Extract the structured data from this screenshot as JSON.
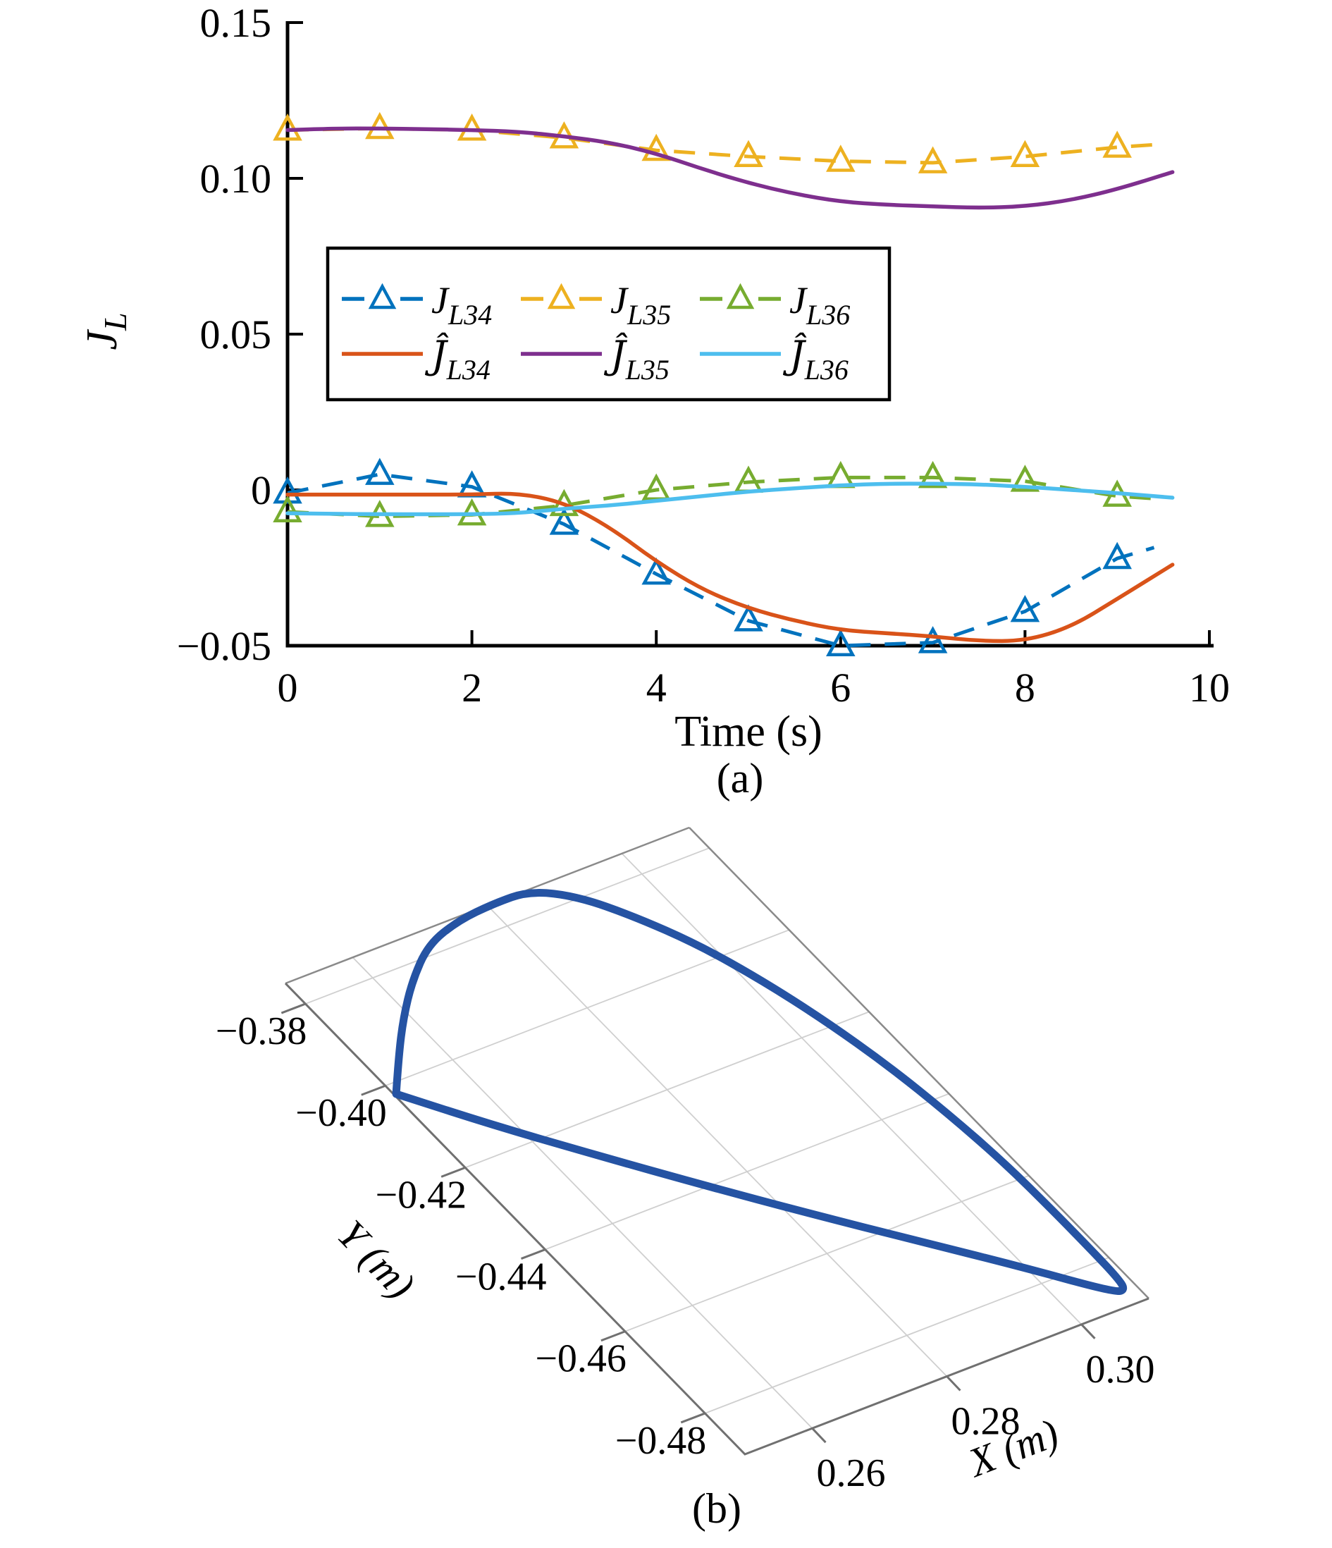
{
  "figure_background": "#ffffff",
  "chart_data": [
    {
      "type": "line",
      "caption": "(a)",
      "xlabel": "Time (s)",
      "ylabel": "J_L",
      "ylabel_parts": {
        "main": "J",
        "sub": "L"
      },
      "xlim": [
        0,
        10
      ],
      "ylim": [
        -0.05,
        0.15
      ],
      "x_ticks": [
        {
          "v": 0,
          "label": "0"
        },
        {
          "v": 2,
          "label": "2"
        },
        {
          "v": 4,
          "label": "4"
        },
        {
          "v": 6,
          "label": "6"
        },
        {
          "v": 8,
          "label": "8"
        },
        {
          "v": 10,
          "label": "10"
        }
      ],
      "y_ticks": [
        {
          "v": 0.15,
          "label": "0.15"
        },
        {
          "v": 0.1,
          "label": "0.10"
        },
        {
          "v": 0.05,
          "label": "0.05"
        },
        {
          "v": 0,
          "label": "0"
        },
        {
          "v": -0.05,
          "label": "−0.05"
        }
      ],
      "grid": false,
      "legend": {
        "position": "inside-upper-left",
        "rows": [
          [
            0,
            1,
            2
          ],
          [
            3,
            4,
            5
          ]
        ]
      },
      "series": [
        {
          "label": "J_L34",
          "head": "J",
          "hat": false,
          "sub": "L34",
          "color": "#0072BD",
          "style": "dashed",
          "marker": "triangle",
          "marker_count": 10,
          "x": [
            0,
            1,
            2,
            3,
            4,
            5,
            6,
            7,
            8,
            9,
            9.4
          ],
          "y": [
            -0.001,
            0.005,
            0.001,
            -0.011,
            -0.027,
            -0.042,
            -0.05,
            -0.049,
            -0.039,
            -0.022,
            -0.0185
          ]
        },
        {
          "label": "J_L35",
          "head": "J",
          "hat": false,
          "sub": "L35",
          "color": "#EDB120",
          "style": "dashed",
          "marker": "triangle",
          "marker_count": 10,
          "x": [
            0,
            1,
            2,
            3,
            4,
            5,
            6,
            7,
            8,
            9,
            9.4
          ],
          "y": [
            0.1155,
            0.116,
            0.1155,
            0.113,
            0.109,
            0.107,
            0.1055,
            0.105,
            0.107,
            0.11,
            0.1108
          ]
        },
        {
          "label": "J_L36",
          "head": "J",
          "hat": false,
          "sub": "L36",
          "color": "#77AC30",
          "style": "dashed",
          "marker": "triangle",
          "marker_count": 10,
          "x": [
            0,
            1,
            2,
            3,
            4,
            5,
            6,
            7,
            8,
            9,
            9.4
          ],
          "y": [
            -0.007,
            -0.0085,
            -0.008,
            -0.005,
            0.0,
            0.0025,
            0.004,
            0.004,
            0.0028,
            -0.002,
            -0.0028
          ]
        },
        {
          "label": "Ĵ_L34",
          "head": "J",
          "hat": true,
          "sub": "L34",
          "color": "#D95319",
          "style": "solid",
          "marker": "none",
          "x": [
            0,
            0.5,
            1,
            1.5,
            2,
            2.5,
            3,
            3.5,
            4,
            4.5,
            5,
            5.5,
            6,
            6.5,
            7,
            7.5,
            8,
            8.5,
            9,
            9.6
          ],
          "y": [
            -0.0015,
            -0.0015,
            -0.0015,
            -0.0015,
            -0.0015,
            -0.001,
            -0.004,
            -0.012,
            -0.023,
            -0.032,
            -0.038,
            -0.042,
            -0.045,
            -0.046,
            -0.047,
            -0.0485,
            -0.0485,
            -0.044,
            -0.035,
            -0.024
          ]
        },
        {
          "label": "Ĵ_L35",
          "head": "J",
          "hat": true,
          "sub": "L35",
          "color": "#7E2F8E",
          "style": "solid",
          "marker": "none",
          "x": [
            0,
            0.5,
            1,
            1.5,
            2,
            2.5,
            3,
            3.5,
            4,
            4.5,
            5,
            5.5,
            6,
            6.5,
            7,
            7.5,
            8,
            8.5,
            9,
            9.6
          ],
          "y": [
            0.1155,
            0.116,
            0.116,
            0.1158,
            0.1155,
            0.115,
            0.1135,
            0.1115,
            0.108,
            0.103,
            0.0985,
            0.095,
            0.0925,
            0.0915,
            0.091,
            0.0905,
            0.091,
            0.093,
            0.0965,
            0.102
          ]
        },
        {
          "label": "Ĵ_L36",
          "head": "J",
          "hat": true,
          "sub": "L36",
          "color": "#4DBEEE",
          "style": "solid",
          "marker": "none",
          "x": [
            0,
            0.5,
            1,
            1.5,
            2,
            2.5,
            3,
            3.5,
            4,
            4.5,
            5,
            5.5,
            6,
            6.5,
            7,
            7.5,
            8,
            8.5,
            9,
            9.6
          ],
          "y": [
            -0.0075,
            -0.0077,
            -0.0078,
            -0.0078,
            -0.0078,
            -0.0075,
            -0.006,
            -0.005,
            -0.0035,
            -0.002,
            -0.0005,
            0.0005,
            0.0015,
            0.002,
            0.002,
            0.0018,
            0.001,
            0.0,
            -0.001,
            -0.0025
          ]
        }
      ]
    },
    {
      "type": "trajectory-3d-plane",
      "caption": "(b)",
      "xlabel": "X (m)",
      "ylabel": "Y (m)",
      "xlim": [
        0.25,
        0.31
      ],
      "ylim": [
        -0.49,
        -0.375
      ],
      "x_ticks": [
        {
          "v": 0.26,
          "label": "0.26"
        },
        {
          "v": 0.28,
          "label": "0.28"
        },
        {
          "v": 0.3,
          "label": "0.30"
        }
      ],
      "y_ticks": [
        {
          "v": -0.38,
          "label": "−0.38"
        },
        {
          "v": -0.4,
          "label": "−0.40"
        },
        {
          "v": -0.42,
          "label": "−0.42"
        },
        {
          "v": -0.44,
          "label": "−0.44"
        },
        {
          "v": -0.46,
          "label": "−0.46"
        },
        {
          "v": -0.48,
          "label": "−0.48"
        }
      ],
      "x_grid": [
        0.26,
        0.28,
        0.3
      ],
      "y_grid": [
        -0.38,
        -0.4,
        -0.42,
        -0.44,
        -0.46,
        -0.48
      ],
      "line_color": "#2553A3",
      "grid_color": "#cfcfcf",
      "edge_color": "#8a8a8a",
      "trajectory": [
        [
          0.2503,
          -0.4022
        ],
        [
          0.2546,
          -0.3956
        ],
        [
          0.2591,
          -0.3892
        ],
        [
          0.2639,
          -0.3833
        ],
        [
          0.2695,
          -0.3779
        ],
        [
          0.2753,
          -0.3757
        ],
        [
          0.2809,
          -0.3751
        ],
        [
          0.2861,
          -0.3753
        ],
        [
          0.2907,
          -0.3796
        ],
        [
          0.2947,
          -0.387
        ],
        [
          0.2986,
          -0.3963
        ],
        [
          0.3017,
          -0.4069
        ],
        [
          0.3043,
          -0.4185
        ],
        [
          0.3064,
          -0.4309
        ],
        [
          0.3078,
          -0.4435
        ],
        [
          0.3087,
          -0.4561
        ],
        [
          0.3089,
          -0.468
        ],
        [
          0.3089,
          -0.4778
        ],
        [
          0.3088,
          -0.4841
        ],
        [
          0.3084,
          -0.4869
        ],
        [
          0.3069,
          -0.4865
        ],
        [
          0.2996,
          -0.4757
        ],
        [
          0.291,
          -0.4638
        ],
        [
          0.2824,
          -0.4518
        ],
        [
          0.274,
          -0.4396
        ],
        [
          0.2657,
          -0.4271
        ],
        [
          0.2575,
          -0.4144
        ],
        [
          0.2503,
          -0.4022
        ]
      ]
    }
  ]
}
